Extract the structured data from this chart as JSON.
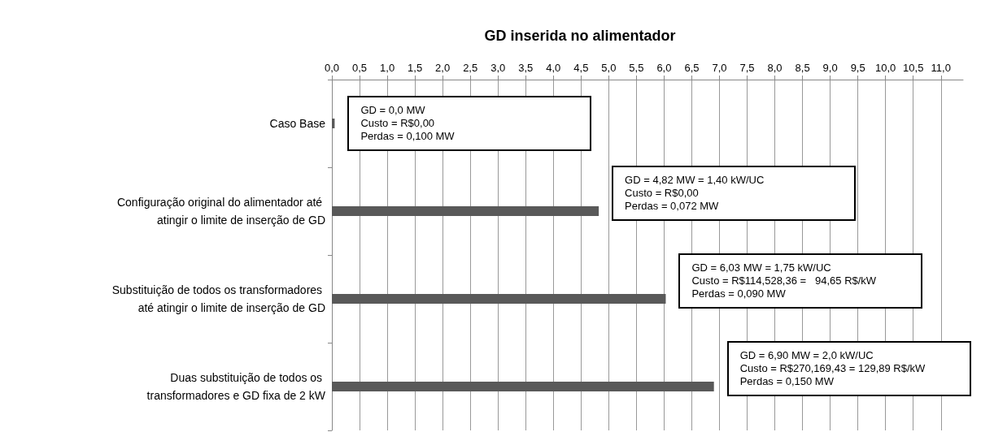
{
  "chart_data": {
    "type": "bar",
    "orientation": "horizontal",
    "title": "GD inserida no alimentador",
    "categories": [
      "Caso Base",
      "Configuração original do alimentador até atingir o limite de inserção de GD",
      "Substituição de todos os transformadores até atingir o limite de inserção de GD",
      "Duas substituição de todos os transformadores e GD fixa de 2 kW"
    ],
    "values": [
      0.05,
      4.82,
      6.03,
      6.9
    ],
    "color": "#595959",
    "xlim": [
      0,
      11.4
    ],
    "xticks": [
      {
        "value": 0,
        "label": "0,0"
      },
      {
        "value": 0.5,
        "label": "0,5"
      },
      {
        "value": 1,
        "label": "1,0"
      },
      {
        "value": 1.5,
        "label": "1,5"
      },
      {
        "value": 2,
        "label": "2,0"
      },
      {
        "value": 2.5,
        "label": "2,5"
      },
      {
        "value": 3,
        "label": "3,0"
      },
      {
        "value": 3.5,
        "label": "3,5"
      },
      {
        "value": 4,
        "label": "4,0"
      },
      {
        "value": 4.5,
        "label": "4,5"
      },
      {
        "value": 5,
        "label": "5,0"
      },
      {
        "value": 5.5,
        "label": "5,5"
      },
      {
        "value": 6,
        "label": "6,0"
      },
      {
        "value": 6.5,
        "label": "6,5"
      },
      {
        "value": 7,
        "label": "7,0"
      },
      {
        "value": 7.5,
        "label": "7,5"
      },
      {
        "value": 8,
        "label": "8,0"
      },
      {
        "value": 8.5,
        "label": "8,5"
      },
      {
        "value": 9,
        "label": "9,0"
      },
      {
        "value": 9.5,
        "label": "9,5"
      },
      {
        "value": 10,
        "label": "10,0"
      },
      {
        "value": 10.5,
        "label": "10,5"
      },
      {
        "value": 11,
        "label": "11,0"
      }
    ],
    "grid": "x",
    "annotations": [
      {
        "text": "GD = 0,0 MW\nCusto = R$0,00\nPerdas = 0,100 MW",
        "x": 0.05,
        "y": "Caso Base"
      },
      {
        "text": "GD = 4,82 MW = 1,40 kW/UC\nCusto = R$0,00\nPerdas = 0,072 MW",
        "x": 4.82,
        "y": "Configuração original do alimentador até atingir o limite de inserção de GD"
      },
      {
        "text": "GD = 6,03 MW = 1,75 kW/UC\nCusto = R$114,528,36 =   94,65 R$/kW\nPerdas = 0,090 MW",
        "x": 6.03,
        "y": "Substituição de todos os transformadores até atingir o limite de inserção de GD"
      },
      {
        "text": "GD = 6,90 MW = 2,0 kW/UC\nCusto = R$270,169,43 = 129,89 R$/kW\nPerdas = 0,150 MW",
        "x": 6.9,
        "y": "Duas substituição de todos os transformadores e GD fixa de 2 kW"
      }
    ]
  }
}
